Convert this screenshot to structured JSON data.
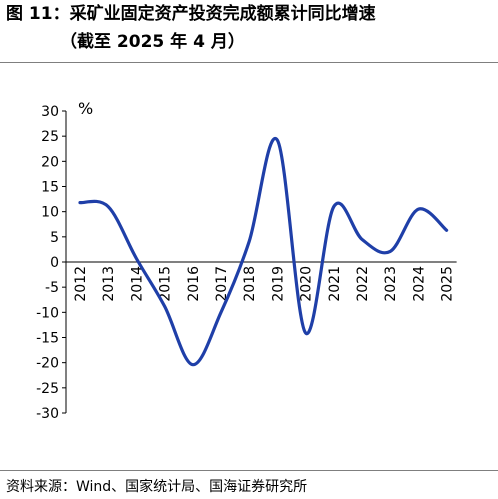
{
  "header": {
    "title_line1": "图 11：采矿业固定资产投资完成额累计同比增速",
    "title_line2": "（截至 2025 年 4 月）"
  },
  "footer": {
    "source": "资料来源：Wind、国家统计局、国海证券研究所"
  },
  "colors": {
    "series": "#1f3fa8",
    "axis": "#000000",
    "rule": "#7f7f7f"
  },
  "chart_data": {
    "type": "line",
    "ylabel": "%",
    "ylim": [
      -30,
      30
    ],
    "yticks": [
      30,
      25,
      20,
      15,
      10,
      5,
      0,
      -5,
      -10,
      -15,
      -20,
      -25,
      -30
    ],
    "grid": false,
    "x": [
      "2012",
      "2013",
      "2014",
      "2015",
      "2016",
      "2017",
      "2018",
      "2019",
      "2020",
      "2021",
      "2022",
      "2023",
      "2024",
      "2025"
    ],
    "series": [
      {
        "values": [
          11.8,
          11.0,
          0.7,
          -8.8,
          -20.4,
          -10.0,
          4.1,
          24.2,
          -14.1,
          11.0,
          4.5,
          2.1,
          10.5,
          6.3
        ]
      }
    ]
  }
}
